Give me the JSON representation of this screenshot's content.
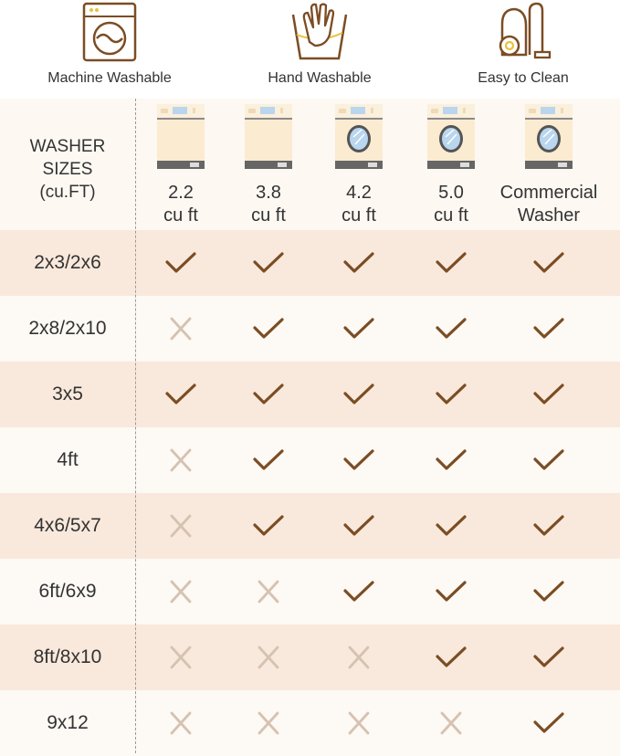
{
  "features": [
    {
      "icon": "washing-machine-icon",
      "label": "Machine Washable"
    },
    {
      "icon": "hand-wash-icon",
      "label": "Hand Washable"
    },
    {
      "icon": "vacuum-cleaner-icon",
      "label": "Easy to Clean"
    }
  ],
  "table": {
    "header_label": [
      "WASHER",
      "SIZES",
      "(cu.FT)"
    ],
    "columns": [
      {
        "line1": "2.2",
        "line2": "cu ft",
        "icon": "top-load-washer-icon"
      },
      {
        "line1": "3.8",
        "line2": "cu ft",
        "icon": "top-load-washer-icon"
      },
      {
        "line1": "4.2",
        "line2": "cu ft",
        "icon": "front-load-washer-icon"
      },
      {
        "line1": "5.0",
        "line2": "cu ft",
        "icon": "front-load-washer-icon"
      },
      {
        "line1": "Commercial",
        "line2": "Washer",
        "icon": "front-load-washer-icon"
      }
    ],
    "rows": [
      {
        "size": "2x3/2x6",
        "fits": [
          true,
          true,
          true,
          true,
          true
        ]
      },
      {
        "size": "2x8/2x10",
        "fits": [
          false,
          true,
          true,
          true,
          true
        ]
      },
      {
        "size": "3x5",
        "fits": [
          true,
          true,
          true,
          true,
          true
        ]
      },
      {
        "size": "4ft",
        "fits": [
          false,
          true,
          true,
          true,
          true
        ]
      },
      {
        "size": "4x6/5x7",
        "fits": [
          false,
          true,
          true,
          true,
          true
        ]
      },
      {
        "size": "6ft/6x9",
        "fits": [
          false,
          false,
          true,
          true,
          true
        ]
      },
      {
        "size": "8ft/8x10",
        "fits": [
          false,
          false,
          false,
          true,
          true
        ]
      },
      {
        "size": "9x12",
        "fits": [
          false,
          false,
          false,
          false,
          true
        ]
      }
    ]
  },
  "colors": {
    "brown": "#7b4d24",
    "cross": "#d6c2b1",
    "row_dark": "#f9e9dc",
    "row_light": "#fdf9f4",
    "accent_yellow": "#e8c23a"
  }
}
